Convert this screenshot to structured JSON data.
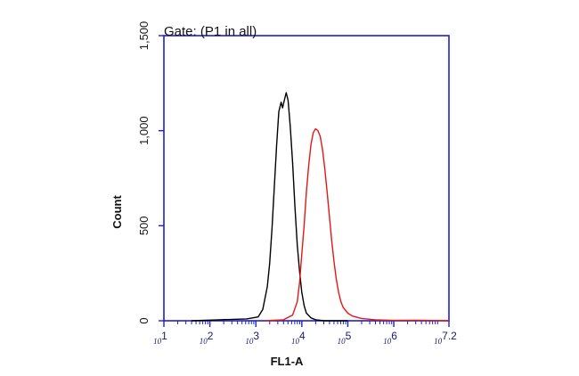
{
  "chart_data": {
    "type": "line",
    "gate_label": "Gate: (P1 in all)",
    "xlabel": "FL1-A",
    "ylabel": "Count",
    "x_scale": "log",
    "xlim": [
      1,
      7.2
    ],
    "ylim": [
      0,
      1500
    ],
    "x_ticks": [
      {
        "value": 1,
        "base": "10",
        "exp": "1"
      },
      {
        "value": 2,
        "base": "10",
        "exp": "2"
      },
      {
        "value": 3,
        "base": "10",
        "exp": "3"
      },
      {
        "value": 4,
        "base": "10",
        "exp": "4"
      },
      {
        "value": 5,
        "base": "10",
        "exp": "5"
      },
      {
        "value": 6,
        "base": "10",
        "exp": "6"
      },
      {
        "value": 7.2,
        "base": "10",
        "exp": "7.2"
      }
    ],
    "y_ticks": [
      {
        "value": 0,
        "label": "0"
      },
      {
        "value": 500,
        "label": "500"
      },
      {
        "value": 1000,
        "label": "1,000"
      },
      {
        "value": 1500,
        "label": "1,500"
      }
    ],
    "colors": {
      "frame": "#1f1fcf",
      "series_control": "#000000",
      "series_sample": "#e11818"
    },
    "series": [
      {
        "color_key": "series_control",
        "x": [
          1.6,
          2.2,
          2.8,
          3.05,
          3.15,
          3.25,
          3.3,
          3.35,
          3.4,
          3.45,
          3.5,
          3.55,
          3.58,
          3.62,
          3.66,
          3.7,
          3.75,
          3.8,
          3.85,
          3.9,
          3.95,
          4.0,
          4.05,
          4.1,
          4.2,
          4.3,
          4.5,
          5.0
        ],
        "y": [
          0,
          5,
          10,
          20,
          60,
          180,
          300,
          480,
          700,
          920,
          1100,
          1150,
          1120,
          1160,
          1200,
          1160,
          1020,
          830,
          600,
          400,
          260,
          150,
          80,
          40,
          15,
          5,
          0,
          0
        ]
      },
      {
        "color_key": "series_sample",
        "x": [
          3.2,
          3.6,
          3.8,
          3.9,
          3.95,
          4.0,
          4.05,
          4.1,
          4.15,
          4.2,
          4.25,
          4.3,
          4.35,
          4.4,
          4.45,
          4.5,
          4.55,
          4.6,
          4.65,
          4.7,
          4.75,
          4.8,
          4.85,
          4.9,
          5.0,
          5.1,
          5.3,
          5.6,
          6.0,
          6.5,
          7.2
        ],
        "y": [
          0,
          5,
          30,
          100,
          200,
          350,
          500,
          680,
          820,
          930,
          990,
          1010,
          1000,
          970,
          900,
          800,
          680,
          550,
          420,
          310,
          220,
          150,
          100,
          70,
          40,
          25,
          12,
          5,
          2,
          3,
          0
        ]
      }
    ]
  }
}
